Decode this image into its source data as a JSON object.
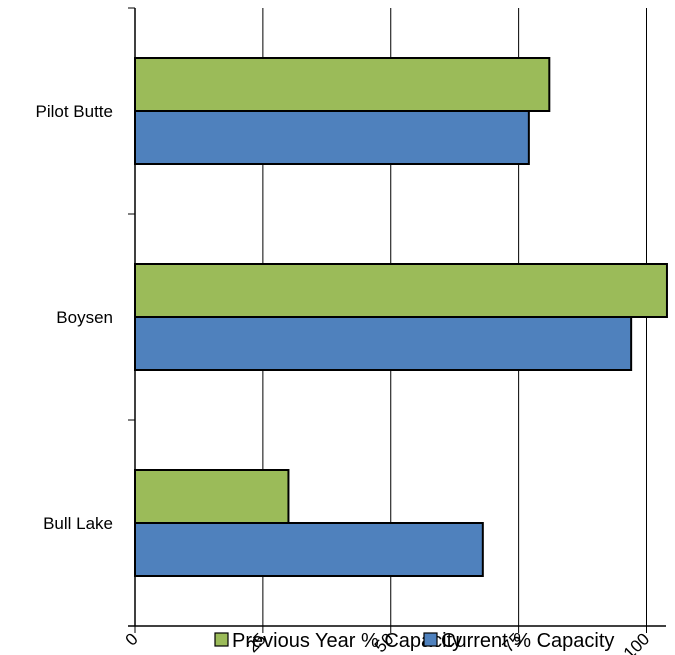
{
  "chart_data": {
    "type": "bar",
    "orientation": "horizontal",
    "categories": [
      "Pilot Butte",
      "Boysen",
      "Bull Lake"
    ],
    "series": [
      {
        "name": "Previous Year % Capacity",
        "color": "#9bbb59",
        "values": [
          81,
          104,
          30
        ]
      },
      {
        "name": "Current % Capacity",
        "color": "#4f81bd",
        "values": [
          77,
          97,
          68
        ]
      }
    ],
    "x_ticks": [
      "0",
      "25",
      "50",
      "75",
      "100"
    ],
    "xlim": [
      0,
      105
    ],
    "grid": true,
    "legend_position": "bottom",
    "title": "",
    "xlabel": "",
    "ylabel": ""
  }
}
